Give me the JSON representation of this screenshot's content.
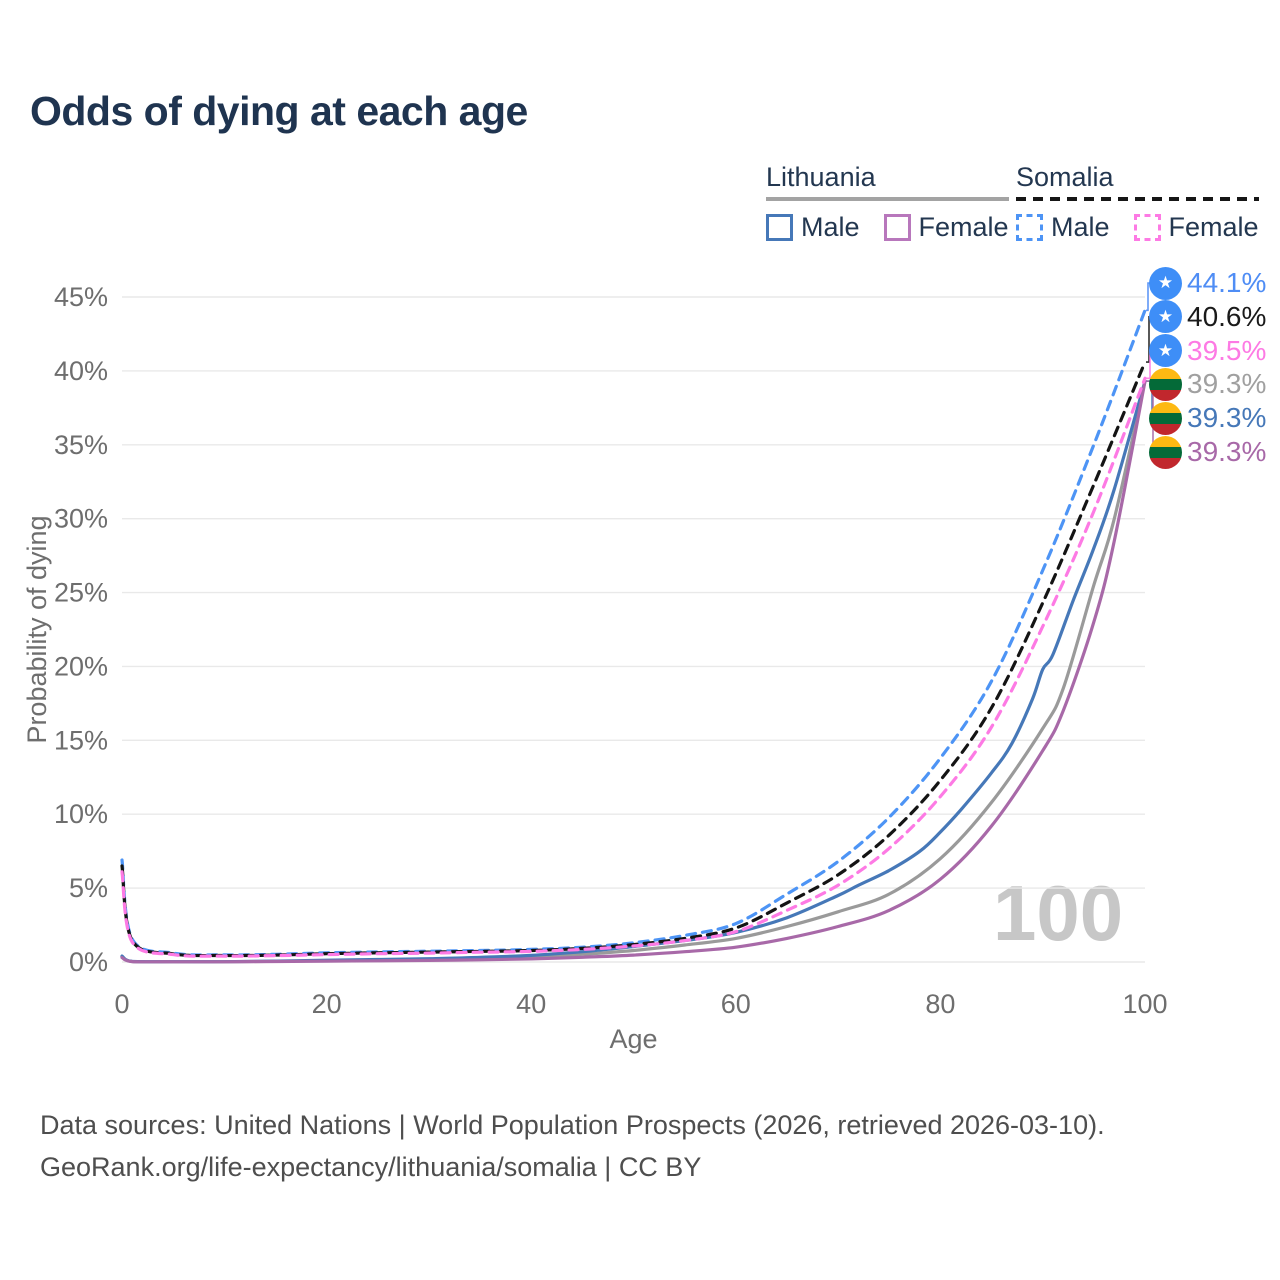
{
  "title": "Odds of dying at each age",
  "watermark": "100",
  "legend": {
    "groups": [
      {
        "key": "lithuania",
        "country": "Lithuania",
        "line_style": "solid",
        "underline_color": "#a3a3a3",
        "items": [
          {
            "key": "lithuania-male",
            "label": "Male",
            "color": "#4678b8",
            "dashed": false
          },
          {
            "key": "lithuania-female",
            "label": "Female",
            "color": "#b877bc",
            "dashed": false
          }
        ]
      },
      {
        "key": "somalia",
        "country": "Somalia",
        "line_style": "dashed",
        "underline_color": "#161616",
        "items": [
          {
            "key": "somalia-male",
            "label": "Male",
            "color": "#4d94f5",
            "dashed": true
          },
          {
            "key": "somalia-female",
            "label": "Female",
            "color": "#fd7ae4",
            "dashed": true
          }
        ]
      }
    ]
  },
  "chart_data": {
    "type": "line",
    "title": "Odds of dying at each age",
    "xlabel": "Age",
    "ylabel": "Probability of dying",
    "xlim": [
      0,
      100
    ],
    "ylim": [
      0,
      45
    ],
    "x_ticks": [
      0,
      20,
      40,
      60,
      80,
      100
    ],
    "y_ticks": [
      0,
      5,
      10,
      15,
      20,
      25,
      30,
      35,
      40,
      45
    ],
    "y_tick_suffix": "%",
    "grid": "horizontal",
    "gridline_color": "#e9e9e9",
    "axis_text_color": "#6e6e6e",
    "highlighted_age": 100,
    "series": [
      {
        "key": "lithuania-both",
        "name": "Lithuania (both sexes)",
        "country": "Lithuania",
        "sex": "both",
        "color": "#9a9a9a",
        "dashed": false,
        "points": [
          [
            0,
            0.38
          ],
          [
            1,
            0.035
          ],
          [
            5,
            0.018
          ],
          [
            10,
            0.018
          ],
          [
            15,
            0.05
          ],
          [
            20,
            0.09
          ],
          [
            25,
            0.13
          ],
          [
            30,
            0.17
          ],
          [
            35,
            0.24
          ],
          [
            40,
            0.34
          ],
          [
            45,
            0.52
          ],
          [
            50,
            0.78
          ],
          [
            55,
            1.15
          ],
          [
            60,
            1.6
          ],
          [
            65,
            2.4
          ],
          [
            70,
            3.4
          ],
          [
            75,
            4.6
          ],
          [
            80,
            7.0
          ],
          [
            85,
            10.8
          ],
          [
            90,
            15.8
          ],
          [
            92,
            18.5
          ],
          [
            95,
            25.5
          ],
          [
            97,
            30.0
          ],
          [
            100,
            39.3
          ]
        ]
      },
      {
        "key": "lithuania-male",
        "name": "Lithuania male",
        "country": "Lithuania",
        "sex": "male",
        "color": "#4678b8",
        "dashed": false,
        "points": [
          [
            0,
            0.4
          ],
          [
            1,
            0.04
          ],
          [
            5,
            0.02
          ],
          [
            10,
            0.02
          ],
          [
            15,
            0.06
          ],
          [
            20,
            0.12
          ],
          [
            25,
            0.17
          ],
          [
            30,
            0.22
          ],
          [
            35,
            0.32
          ],
          [
            40,
            0.45
          ],
          [
            45,
            0.7
          ],
          [
            50,
            1.05
          ],
          [
            55,
            1.45
          ],
          [
            60,
            2.0
          ],
          [
            65,
            3.0
          ],
          [
            70,
            4.5
          ],
          [
            72,
            5.2
          ],
          [
            75,
            6.2
          ],
          [
            78,
            7.5
          ],
          [
            80,
            8.8
          ],
          [
            82,
            10.3
          ],
          [
            85,
            12.8
          ],
          [
            87,
            14.8
          ],
          [
            89,
            17.8
          ],
          [
            90,
            19.8
          ],
          [
            91,
            20.8
          ],
          [
            93,
            24.5
          ],
          [
            95,
            28.0
          ],
          [
            97,
            32.0
          ],
          [
            100,
            39.3
          ]
        ]
      },
      {
        "key": "lithuania-female",
        "name": "Lithuania female",
        "country": "Lithuania",
        "sex": "female",
        "color": "#a869a8",
        "dashed": false,
        "points": [
          [
            0,
            0.3
          ],
          [
            1,
            0.03
          ],
          [
            5,
            0.015
          ],
          [
            10,
            0.015
          ],
          [
            15,
            0.035
          ],
          [
            20,
            0.06
          ],
          [
            25,
            0.08
          ],
          [
            30,
            0.11
          ],
          [
            35,
            0.15
          ],
          [
            40,
            0.21
          ],
          [
            45,
            0.32
          ],
          [
            50,
            0.47
          ],
          [
            55,
            0.7
          ],
          [
            60,
            1.0
          ],
          [
            65,
            1.6
          ],
          [
            70,
            2.4
          ],
          [
            75,
            3.5
          ],
          [
            80,
            5.6
          ],
          [
            85,
            9.2
          ],
          [
            90,
            14.3
          ],
          [
            92,
            17.0
          ],
          [
            95,
            23.0
          ],
          [
            97,
            28.5
          ],
          [
            100,
            39.3
          ]
        ]
      },
      {
        "key": "somalia-male",
        "name": "Somalia male",
        "country": "Somalia",
        "sex": "male",
        "color": "#4d94f5",
        "dashed": true,
        "points": [
          [
            0,
            6.9
          ],
          [
            1,
            1.55
          ],
          [
            5,
            0.6
          ],
          [
            10,
            0.48
          ],
          [
            15,
            0.52
          ],
          [
            20,
            0.62
          ],
          [
            25,
            0.68
          ],
          [
            30,
            0.73
          ],
          [
            35,
            0.78
          ],
          [
            40,
            0.85
          ],
          [
            45,
            1.0
          ],
          [
            50,
            1.3
          ],
          [
            55,
            1.8
          ],
          [
            60,
            2.6
          ],
          [
            65,
            4.6
          ],
          [
            70,
            6.8
          ],
          [
            75,
            9.8
          ],
          [
            80,
            13.8
          ],
          [
            85,
            19.0
          ],
          [
            90,
            26.5
          ],
          [
            95,
            35.0
          ],
          [
            100,
            44.1
          ]
        ]
      },
      {
        "key": "somalia-both",
        "name": "Somalia (both sexes)",
        "country": "Somalia",
        "sex": "both",
        "color": "#141414",
        "dashed": true,
        "points": [
          [
            0,
            6.5
          ],
          [
            1,
            1.45
          ],
          [
            5,
            0.55
          ],
          [
            10,
            0.44
          ],
          [
            15,
            0.47
          ],
          [
            20,
            0.56
          ],
          [
            25,
            0.62
          ],
          [
            30,
            0.67
          ],
          [
            35,
            0.72
          ],
          [
            40,
            0.78
          ],
          [
            45,
            0.92
          ],
          [
            50,
            1.18
          ],
          [
            55,
            1.6
          ],
          [
            60,
            2.3
          ],
          [
            65,
            4.0
          ],
          [
            70,
            5.9
          ],
          [
            75,
            8.6
          ],
          [
            80,
            12.3
          ],
          [
            85,
            17.2
          ],
          [
            90,
            24.3
          ],
          [
            95,
            32.3
          ],
          [
            100,
            40.6
          ]
        ]
      },
      {
        "key": "somalia-female",
        "name": "Somalia female",
        "country": "Somalia",
        "sex": "female",
        "color": "#fd7ae4",
        "dashed": true,
        "points": [
          [
            0,
            6.1
          ],
          [
            1,
            1.35
          ],
          [
            5,
            0.5
          ],
          [
            10,
            0.4
          ],
          [
            15,
            0.43
          ],
          [
            20,
            0.5
          ],
          [
            25,
            0.56
          ],
          [
            30,
            0.6
          ],
          [
            35,
            0.66
          ],
          [
            40,
            0.72
          ],
          [
            45,
            0.85
          ],
          [
            50,
            1.08
          ],
          [
            55,
            1.45
          ],
          [
            60,
            2.05
          ],
          [
            65,
            3.5
          ],
          [
            70,
            5.2
          ],
          [
            75,
            7.7
          ],
          [
            80,
            11.2
          ],
          [
            85,
            15.9
          ],
          [
            90,
            22.7
          ],
          [
            95,
            30.5
          ],
          [
            100,
            39.5
          ]
        ]
      }
    ]
  },
  "end_labels": [
    {
      "series_key": "somalia-male",
      "flag": "somalia",
      "value": "44.1%",
      "text_color": "#4f8df5"
    },
    {
      "series_key": "somalia-both",
      "flag": "somalia",
      "value": "40.6%",
      "text_color": "#1a1a1a"
    },
    {
      "series_key": "somalia-female",
      "flag": "somalia",
      "value": "39.5%",
      "text_color": "#fd7ae4"
    },
    {
      "series_key": "lithuania-both",
      "flag": "lithuania",
      "value": "39.3%",
      "text_color": "#a0a0a0"
    },
    {
      "series_key": "lithuania-male",
      "flag": "lithuania",
      "value": "39.3%",
      "text_color": "#4678b8"
    },
    {
      "series_key": "lithuania-female",
      "flag": "lithuania",
      "value": "39.3%",
      "text_color": "#a869a8"
    }
  ],
  "flags": {
    "somalia": {
      "background": "#3e8ef7",
      "star": "★",
      "star_color": "#ffffff"
    },
    "lithuania": {
      "stripes": [
        "#FDB913",
        "#046A38",
        "#C1272D"
      ]
    }
  },
  "footer": {
    "line1": "Data sources: United Nations | World Population Prospects (2026, retrieved 2026-03-10).",
    "line2": "GeoRank.org/life-expectancy/lithuania/somalia | CC BY"
  }
}
